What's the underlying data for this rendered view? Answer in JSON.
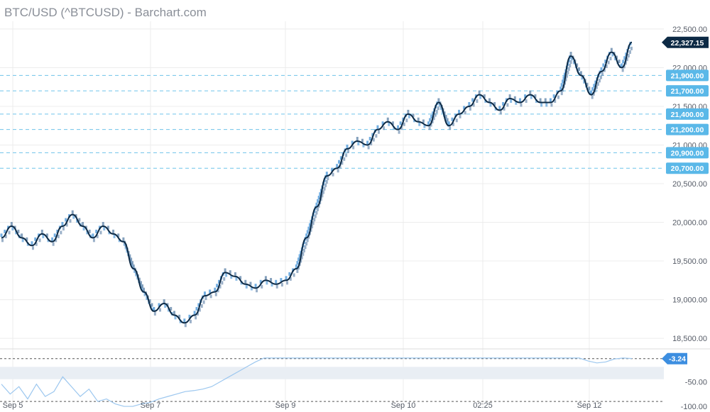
{
  "title": "BTC/USD (^BTCUSD) - Barchart.com",
  "colors": {
    "renko": "#5aa0dc",
    "renko_dark": "#6f8fb0",
    "ma_line": "#0d2a45",
    "level": "#6fc3ea",
    "level_badge": "#5ab8e8",
    "last_badge": "#0d2a45",
    "osc_line": "#9cc7ef",
    "osc_badge": "#3c8ee0",
    "osc_band": "#e9eef4",
    "grid": "#ececec"
  },
  "chart_data": [
    {
      "type": "line",
      "subtype": "renko",
      "title": "BTC/USD (^BTCUSD) - Barchart.com",
      "y_ticks": [
        "22,500.00",
        "22,000.00",
        "21,500.00",
        "21,000.00",
        "20,500.00",
        "20,000.00",
        "19,500.00",
        "19,000.00",
        "18,500.00"
      ],
      "ylim": [
        18400,
        22600
      ],
      "x_ticks": [
        "Sep 5",
        "Sep 7",
        "Sep 9",
        "Sep 10",
        "02:25",
        "Sep 12"
      ],
      "last_price": 22327.15,
      "last_price_label": "22,327.15",
      "levels": [
        {
          "value": 21900,
          "label": "21,900.00"
        },
        {
          "value": 21700,
          "label": "21,700.00"
        },
        {
          "value": 21400,
          "label": "21,400.00"
        },
        {
          "value": 21200,
          "label": "21,200.00"
        },
        {
          "value": 20900,
          "label": "20,900.00"
        },
        {
          "value": 20700,
          "label": "20,700.00"
        }
      ],
      "series": [
        {
          "values": [
            19800,
            19950,
            19800,
            19700,
            19850,
            19750,
            19950,
            20100,
            19950,
            19800,
            19950,
            19850,
            19750,
            19400,
            19100,
            18850,
            18950,
            18800,
            18700,
            18800,
            19050,
            19100,
            19350,
            19300,
            19200,
            19150,
            19250,
            19200,
            19250,
            19400,
            19800,
            20200,
            20600,
            20700,
            20950,
            21050,
            21000,
            21200,
            21300,
            21200,
            21400,
            21300,
            21250,
            21550,
            21250,
            21400,
            21500,
            21650,
            21550,
            21450,
            21600,
            21550,
            21650,
            21550,
            21550,
            21700,
            22150,
            21900,
            21650,
            21950,
            22200,
            22000,
            22327.15
          ]
        }
      ]
    },
    {
      "type": "line",
      "subtype": "oscillator",
      "y_ticks": [
        "-50.00",
        "-100.00"
      ],
      "ylim": [
        -110,
        5
      ],
      "last_value": -3.24,
      "last_value_label": "-3.24",
      "upper_line": -3.24,
      "lower_line": -90,
      "band": [
        -20,
        -45
      ],
      "values": [
        -55,
        -75,
        -60,
        -85,
        -55,
        -80,
        -70,
        -40,
        -60,
        -80,
        -65,
        -90,
        -85,
        -95,
        -100,
        -100,
        -95,
        -92,
        -85,
        -80,
        -75,
        -70,
        -68,
        -65,
        -60,
        -50,
        -40,
        -30,
        -20,
        -10,
        -2,
        -2,
        -2,
        -2,
        -2,
        -2,
        -2,
        -2,
        -2,
        -2,
        -2,
        -2,
        -2,
        -2,
        -2,
        -2,
        -2,
        -2,
        -2,
        -2,
        -2,
        -2,
        -2,
        -2,
        -2,
        -2,
        -2,
        -2,
        -2,
        -2,
        -2,
        -2,
        -2,
        -2,
        -2,
        -2,
        -2,
        -8,
        -12,
        -10,
        -4,
        -2,
        -3
      ]
    }
  ]
}
